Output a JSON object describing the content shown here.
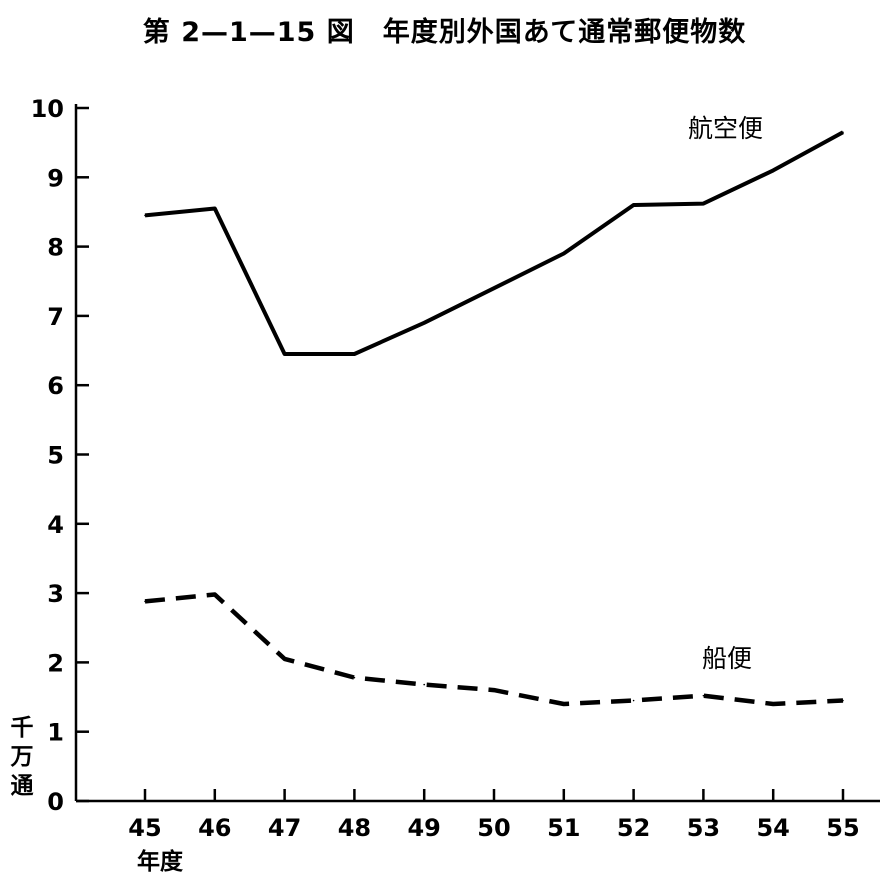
{
  "chart_data": {
    "type": "line",
    "title": "第 2—1—15 図　年度別外国あて通常郵便物数",
    "ylabel": "千万通",
    "xlabel": "年度",
    "categories": [
      "45",
      "46",
      "47",
      "48",
      "49",
      "50",
      "51",
      "52",
      "53",
      "54",
      "55"
    ],
    "ylim": [
      0,
      10
    ],
    "yticks": [
      "0",
      "1",
      "2",
      "3",
      "4",
      "5",
      "6",
      "7",
      "8",
      "9",
      "10"
    ],
    "grid": false,
    "series": [
      {
        "name": "航空便",
        "style": "solid",
        "values": [
          8.45,
          8.55,
          6.45,
          6.45,
          6.9,
          7.4,
          7.9,
          8.6,
          8.62,
          9.1,
          9.65
        ]
      },
      {
        "name": "船便",
        "style": "dashed",
        "values": [
          2.88,
          2.98,
          2.05,
          1.78,
          1.68,
          1.6,
          1.4,
          1.45,
          1.52,
          1.4,
          1.45
        ]
      }
    ],
    "colors": {
      "line": "#000000"
    }
  }
}
